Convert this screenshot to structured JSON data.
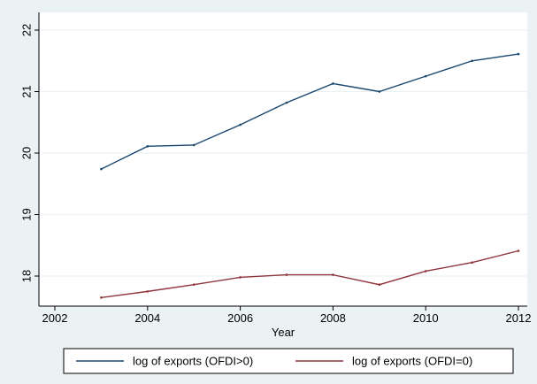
{
  "chart_data": {
    "type": "line",
    "title": "",
    "xlabel": "Year",
    "ylabel": "",
    "xlim": [
      2002,
      2012
    ],
    "ylim": [
      17.55,
      22.15
    ],
    "x_ticks": [
      2002,
      2004,
      2006,
      2008,
      2010,
      2012
    ],
    "y_ticks": [
      18,
      19,
      20,
      21,
      22
    ],
    "grid": "horizontal",
    "legend_placement": "bottom",
    "x": [
      2003,
      2004,
      2005,
      2006,
      2007,
      2008,
      2009,
      2010,
      2011,
      2012
    ],
    "series": [
      {
        "name": "log of exports (OFDI>0)",
        "color": "#1a476f",
        "values": [
          19.74,
          20.11,
          20.13,
          20.46,
          20.82,
          21.13,
          21.0,
          21.25,
          21.5,
          21.61
        ]
      },
      {
        "name": "log of exports (OFDI=0)",
        "color": "#90353b",
        "values": [
          17.65,
          17.75,
          17.86,
          17.98,
          18.02,
          18.02,
          17.86,
          18.08,
          18.22,
          18.41
        ]
      }
    ]
  }
}
